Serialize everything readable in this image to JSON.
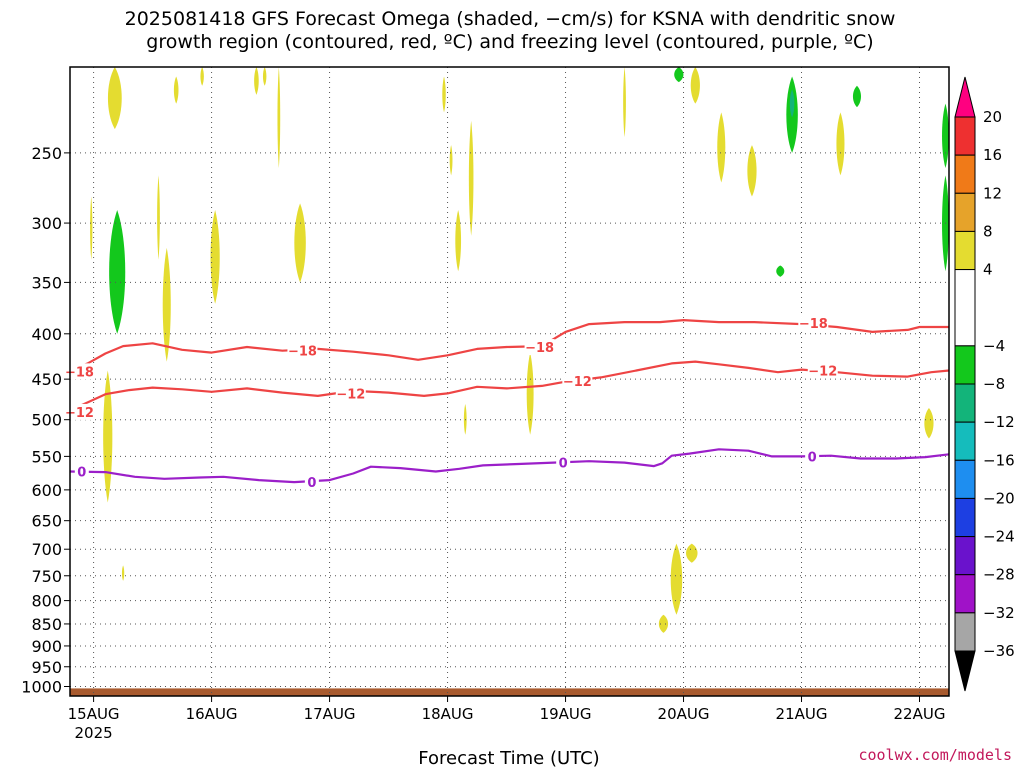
{
  "chart_data": {
    "type": "heatmap",
    "title_line1": "2025081418 GFS Forecast Omega (shaded, −cm/s) for KSNA with dendritic snow",
    "title_line2": "growth region (contoured, red, ºC) and freezing level (contoured, purple, ºC)",
    "xlabel": "Forecast Time (UTC)",
    "credit": "coolwx.com/models",
    "x_ticks": [
      {
        "day": 15,
        "label": "15AUG",
        "sublabel": "2025"
      },
      {
        "day": 16,
        "label": "16AUG"
      },
      {
        "day": 17,
        "label": "17AUG"
      },
      {
        "day": 18,
        "label": "18AUG"
      },
      {
        "day": 19,
        "label": "19AUG"
      },
      {
        "day": 20,
        "label": "20AUG"
      },
      {
        "day": 21,
        "label": "21AUG"
      },
      {
        "day": 22,
        "label": "22AUG"
      }
    ],
    "xlim_days": [
      14.8,
      22.25
    ],
    "ylim_hpa": [
      200,
      1025
    ],
    "y_ticks": [
      {
        "p": 250,
        "label": "250"
      },
      {
        "p": 300,
        "label": "300"
      },
      {
        "p": 350,
        "label": "350"
      },
      {
        "p": 400,
        "label": "400"
      },
      {
        "p": 450,
        "label": "450"
      },
      {
        "p": 500,
        "label": "500"
      },
      {
        "p": 550,
        "label": "550"
      },
      {
        "p": 600,
        "label": "600"
      },
      {
        "p": 650,
        "label": "650"
      },
      {
        "p": 700,
        "label": "700"
      },
      {
        "p": 750,
        "label": "750"
      },
      {
        "p": 800,
        "label": "800"
      },
      {
        "p": 850,
        "label": "850"
      },
      {
        "p": 900,
        "label": "900"
      },
      {
        "p": 950,
        "label": "950"
      },
      {
        "p": 1000,
        "label": "1000"
      }
    ],
    "grid": "dotted",
    "colorbar": {
      "bins": [
        {
          "from": 20,
          "to": 24,
          "color": "#ff0080",
          "triangle": "up"
        },
        {
          "from": 16,
          "to": 20,
          "color": "#ee3030"
        },
        {
          "from": 12,
          "to": 16,
          "color": "#f07a18"
        },
        {
          "from": 8,
          "to": 12,
          "color": "#e6a32a"
        },
        {
          "from": 4,
          "to": 8,
          "color": "#e4dc30"
        },
        {
          "from": -4,
          "to": 4,
          "color": "#ffffff"
        },
        {
          "from": -8,
          "to": -4,
          "color": "#13c81c"
        },
        {
          "from": -12,
          "to": -8,
          "color": "#13b47a"
        },
        {
          "from": -16,
          "to": -12,
          "color": "#15bcbc"
        },
        {
          "from": -20,
          "to": -16,
          "color": "#1e8ef0"
        },
        {
          "from": -24,
          "to": -20,
          "color": "#1d3fe2"
        },
        {
          "from": -28,
          "to": -24,
          "color": "#6a12cc"
        },
        {
          "from": -32,
          "to": -28,
          "color": "#a012c8"
        },
        {
          "from": -36,
          "to": -32,
          "color": "#a6a6a6"
        },
        {
          "from": -40,
          "to": -36,
          "color": "#000000",
          "triangle": "down"
        }
      ],
      "tick_labels": [
        "20",
        "16",
        "12",
        "8",
        "4",
        "−4",
        "−8",
        "−12",
        "−16",
        "−20",
        "−24",
        "−28",
        "−32",
        "−36"
      ]
    },
    "omega_patches": [
      {
        "color": "#e4dc30",
        "day": 15.18,
        "p1": 200,
        "p2": 235,
        "half": 0.06
      },
      {
        "color": "#e4dc30",
        "day": 15.7,
        "p1": 205,
        "p2": 220,
        "half": 0.02
      },
      {
        "color": "#e4dc30",
        "day": 15.92,
        "p1": 200,
        "p2": 210,
        "half": 0.015
      },
      {
        "color": "#e4dc30",
        "day": 16.38,
        "p1": 200,
        "p2": 215,
        "half": 0.02
      },
      {
        "color": "#e4dc30",
        "day": 16.45,
        "p1": 200,
        "p2": 210,
        "half": 0.015
      },
      {
        "color": "#e4dc30",
        "day": 16.57,
        "p1": 200,
        "p2": 260,
        "half": 0.012
      },
      {
        "color": "#e4dc30",
        "day": 17.97,
        "p1": 205,
        "p2": 225,
        "half": 0.015
      },
      {
        "color": "#e4dc30",
        "day": 18.03,
        "p1": 245,
        "p2": 265,
        "half": 0.012
      },
      {
        "color": "#e4dc30",
        "day": 18.2,
        "p1": 230,
        "p2": 310,
        "half": 0.02
      },
      {
        "color": "#e4dc30",
        "day": 18.09,
        "p1": 290,
        "p2": 340,
        "half": 0.025
      },
      {
        "color": "#e4dc30",
        "day": 19.5,
        "p1": 200,
        "p2": 240,
        "half": 0.012
      },
      {
        "color": "#e4dc30",
        "day": 20.1,
        "p1": 200,
        "p2": 220,
        "half": 0.04
      },
      {
        "color": "#e4dc30",
        "day": 20.32,
        "p1": 225,
        "p2": 270,
        "half": 0.035
      },
      {
        "color": "#e4dc30",
        "day": 20.58,
        "p1": 245,
        "p2": 280,
        "half": 0.04
      },
      {
        "color": "#e4dc30",
        "day": 21.33,
        "p1": 225,
        "p2": 265,
        "half": 0.035
      },
      {
        "color": "#13c81c",
        "day": 20.92,
        "p1": 205,
        "p2": 250,
        "half": 0.05
      },
      {
        "color": "#13c81c",
        "day": 21.47,
        "p1": 210,
        "p2": 222,
        "half": 0.035
      },
      {
        "color": "#13c81c",
        "day": 19.96,
        "p1": 200,
        "p2": 208,
        "half": 0.04
      },
      {
        "color": "#13c81c",
        "day": 20.82,
        "p1": 335,
        "p2": 345,
        "half": 0.035
      },
      {
        "color": "#13c81c",
        "day": 22.22,
        "p1": 220,
        "p2": 260,
        "half": 0.03
      },
      {
        "color": "#13c81c",
        "day": 22.22,
        "p1": 265,
        "p2": 340,
        "half": 0.03
      },
      {
        "color": "#13b47a",
        "day": 20.92,
        "p1": 212,
        "p2": 228,
        "half": 0.02
      },
      {
        "color": "#e4dc30",
        "day": 14.98,
        "p1": 280,
        "p2": 330,
        "half": 0.01
      },
      {
        "color": "#13c81c",
        "day": 15.2,
        "p1": 290,
        "p2": 400,
        "half": 0.07
      },
      {
        "color": "#e4dc30",
        "day": 15.55,
        "p1": 265,
        "p2": 330,
        "half": 0.012
      },
      {
        "color": "#e4dc30",
        "day": 15.62,
        "p1": 320,
        "p2": 430,
        "half": 0.035
      },
      {
        "color": "#e4dc30",
        "day": 16.03,
        "p1": 290,
        "p2": 370,
        "half": 0.04
      },
      {
        "color": "#e4dc30",
        "day": 16.75,
        "p1": 285,
        "p2": 350,
        "half": 0.05
      },
      {
        "color": "#e4dc30",
        "day": 15.12,
        "p1": 440,
        "p2": 620,
        "half": 0.04
      },
      {
        "color": "#e4dc30",
        "day": 15.25,
        "p1": 730,
        "p2": 760,
        "half": 0.01
      },
      {
        "color": "#e4dc30",
        "day": 18.15,
        "p1": 480,
        "p2": 520,
        "half": 0.012
      },
      {
        "color": "#e4dc30",
        "day": 18.7,
        "p1": 420,
        "p2": 520,
        "half": 0.03
      },
      {
        "color": "#e4dc30",
        "day": 22.08,
        "p1": 485,
        "p2": 525,
        "half": 0.04
      },
      {
        "color": "#e4dc30",
        "day": 19.94,
        "p1": 690,
        "p2": 830,
        "half": 0.05
      },
      {
        "color": "#e4dc30",
        "day": 20.07,
        "p1": 690,
        "p2": 725,
        "half": 0.05
      },
      {
        "color": "#e4dc30",
        "day": 19.83,
        "p1": 830,
        "p2": 870,
        "half": 0.04
      }
    ],
    "surface": {
      "color": "#a85a2e",
      "p_top": 1005,
      "p_bottom": 1025
    },
    "contours": [
      {
        "level": -18,
        "color": "#ee4444",
        "points": [
          [
            14.8,
            440
          ],
          [
            14.95,
            432
          ],
          [
            15.1,
            421
          ],
          [
            15.25,
            413
          ],
          [
            15.5,
            410
          ],
          [
            15.75,
            417
          ],
          [
            16.0,
            420
          ],
          [
            16.3,
            414
          ],
          [
            16.6,
            418
          ],
          [
            16.9,
            416
          ],
          [
            17.2,
            419
          ],
          [
            17.5,
            423
          ],
          [
            17.75,
            428
          ],
          [
            18.0,
            423
          ],
          [
            18.25,
            416
          ],
          [
            18.5,
            414
          ],
          [
            18.8,
            413
          ],
          [
            19.0,
            398
          ],
          [
            19.2,
            390
          ],
          [
            19.5,
            388
          ],
          [
            19.8,
            388
          ],
          [
            20.0,
            386
          ],
          [
            20.3,
            388
          ],
          [
            20.6,
            388
          ],
          [
            21.0,
            390
          ],
          [
            21.3,
            393
          ],
          [
            21.6,
            398
          ],
          [
            21.9,
            396
          ],
          [
            22.0,
            393
          ],
          [
            22.25,
            393
          ]
        ],
        "labels": [
          [
            14.88,
            441,
            "−18"
          ],
          [
            16.77,
            418,
            "−18"
          ],
          [
            18.78,
            414,
            "−18"
          ],
          [
            21.1,
            389,
            "−18"
          ]
        ]
      },
      {
        "level": -12,
        "color": "#ee4444",
        "points": [
          [
            14.8,
            488
          ],
          [
            14.95,
            478
          ],
          [
            15.1,
            468
          ],
          [
            15.3,
            463
          ],
          [
            15.5,
            460
          ],
          [
            15.75,
            462
          ],
          [
            16.0,
            465
          ],
          [
            16.3,
            461
          ],
          [
            16.6,
            466
          ],
          [
            16.9,
            470
          ],
          [
            17.2,
            464
          ],
          [
            17.5,
            466
          ],
          [
            17.8,
            470
          ],
          [
            18.0,
            467
          ],
          [
            18.25,
            459
          ],
          [
            18.5,
            461
          ],
          [
            18.8,
            458
          ],
          [
            19.0,
            453
          ],
          [
            19.3,
            448
          ],
          [
            19.6,
            440
          ],
          [
            19.9,
            432
          ],
          [
            20.1,
            430
          ],
          [
            20.3,
            433
          ],
          [
            20.55,
            437
          ],
          [
            20.8,
            442
          ],
          [
            21.0,
            439
          ],
          [
            21.3,
            442
          ],
          [
            21.6,
            446
          ],
          [
            21.9,
            447
          ],
          [
            22.1,
            442
          ],
          [
            22.25,
            440
          ]
        ],
        "labels": [
          [
            14.88,
            490,
            "−12"
          ],
          [
            17.18,
            467,
            "−12"
          ],
          [
            19.1,
            452,
            "−12"
          ],
          [
            21.18,
            440,
            "−12"
          ]
        ]
      },
      {
        "level": 0,
        "color": "#9b1fc9",
        "points": [
          [
            14.8,
            572
          ],
          [
            15.1,
            573
          ],
          [
            15.35,
            580
          ],
          [
            15.6,
            583
          ],
          [
            15.9,
            581
          ],
          [
            16.1,
            580
          ],
          [
            16.4,
            585
          ],
          [
            16.7,
            588
          ],
          [
            17.0,
            585
          ],
          [
            17.2,
            575
          ],
          [
            17.35,
            565
          ],
          [
            17.6,
            567
          ],
          [
            17.9,
            572
          ],
          [
            18.1,
            568
          ],
          [
            18.3,
            563
          ],
          [
            18.6,
            561
          ],
          [
            18.9,
            559
          ],
          [
            19.2,
            557
          ],
          [
            19.5,
            559
          ],
          [
            19.75,
            564
          ],
          [
            19.82,
            560
          ],
          [
            19.9,
            549
          ],
          [
            20.05,
            546
          ],
          [
            20.3,
            540
          ],
          [
            20.55,
            542
          ],
          [
            20.75,
            550
          ],
          [
            21.0,
            550
          ],
          [
            21.25,
            549
          ],
          [
            21.5,
            553
          ],
          [
            21.8,
            553
          ],
          [
            22.05,
            551
          ],
          [
            22.25,
            547
          ]
        ],
        "labels": [
          [
            14.9,
            572,
            "0"
          ],
          [
            16.85,
            588,
            "0"
          ],
          [
            18.98,
            559,
            "0"
          ],
          [
            21.09,
            550,
            "0"
          ]
        ]
      }
    ]
  }
}
